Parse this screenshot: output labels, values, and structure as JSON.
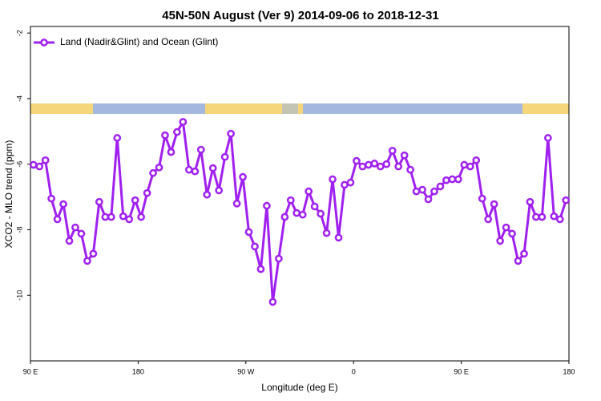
{
  "chart_data": {
    "type": "line",
    "title": "45N-50N August (Ver 9)   2014-09-06 to 2018-12-31",
    "xlabel": "Longitude (deg E)",
    "ylabel": "XCO2 - MLO trend (ppm)",
    "x": [
      92.5,
      97.5,
      102.5,
      107.5,
      112.5,
      117.5,
      122.5,
      127.5,
      132.5,
      137.5,
      142.5,
      147.5,
      152.5,
      157.5,
      162.5,
      167.5,
      172.5,
      177.5,
      182.5,
      187.5,
      192.5,
      197.5,
      202.5,
      207.5,
      212.5,
      217.5,
      222.5,
      227.5,
      232.5,
      237.5,
      242.5,
      247.5,
      252.5,
      257.5,
      262.5,
      267.5,
      272.5,
      277.5,
      282.5,
      287.5,
      292.5,
      297.5,
      302.5,
      307.5,
      312.5,
      317.5,
      322.5,
      327.5,
      332.5,
      337.5,
      342.5,
      347.5,
      352.5,
      357.5,
      362.5,
      367.5,
      372.5,
      377.5,
      382.5,
      387.5,
      392.5,
      397.5,
      402.5,
      407.5,
      412.5,
      417.5,
      422.5,
      427.5,
      432.5,
      437.5,
      442.5,
      447.5,
      452.5,
      457.5,
      462.5,
      467.5,
      472.5,
      477.5,
      482.5,
      487.5,
      492.5,
      497.5,
      502.5,
      507.5,
      512.5,
      517.5,
      522.5,
      527.5,
      532.5,
      537.5
    ],
    "series": [
      {
        "name": "Land (Nadir&Glint) and Ocean (Glint)",
        "color": "#a020f0",
        "values": [
          -6.02,
          -6.07,
          -5.88,
          -7.05,
          -7.68,
          -7.22,
          -8.34,
          -7.93,
          -8.12,
          -8.95,
          -8.73,
          -7.15,
          -7.61,
          -7.61,
          -5.2,
          -7.59,
          -7.68,
          -7.1,
          -7.61,
          -6.88,
          -6.27,
          -6.1,
          -5.12,
          -5.63,
          -5.02,
          -4.71,
          -6.17,
          -6.22,
          -5.56,
          -6.93,
          -6.12,
          -6.8,
          -5.78,
          -5.07,
          -7.2,
          -6.39,
          -8.07,
          -8.51,
          -9.2,
          -7.27,
          -10.2,
          -8.88,
          -7.61,
          -7.1,
          -7.49,
          -7.54,
          -6.83,
          -7.29,
          -7.51,
          -8.1,
          -6.46,
          -8.24,
          -6.63,
          -6.56,
          -5.9,
          -6.07,
          -6.02,
          -5.98,
          -6.07,
          -6.0,
          -5.59,
          -6.07,
          -5.73,
          -6.17,
          -6.83,
          -6.78,
          -7.07,
          -6.83,
          -6.68,
          -6.49,
          -6.46,
          -6.46,
          -6.02,
          -6.07,
          -5.88,
          -7.05,
          -7.68,
          -7.22,
          -8.34,
          -7.93,
          -8.12,
          -8.95,
          -8.73,
          -7.15,
          -7.61,
          -7.61,
          -5.2,
          -7.59,
          -7.68,
          -7.1
        ]
      }
    ],
    "xlim": [
      90,
      540
    ],
    "xticks": [
      {
        "value": 90,
        "label": "90 E"
      },
      {
        "value": 180,
        "label": "180"
      },
      {
        "value": 270,
        "label": "90 W"
      },
      {
        "value": 360,
        "label": "0"
      },
      {
        "value": 450,
        "label": "90 E"
      },
      {
        "value": 540,
        "label": "180"
      }
    ],
    "ylim": [
      -12,
      -1.8
    ],
    "yticks": [
      -2,
      -4,
      -6,
      -8,
      -10
    ],
    "legend": "top-left"
  }
}
